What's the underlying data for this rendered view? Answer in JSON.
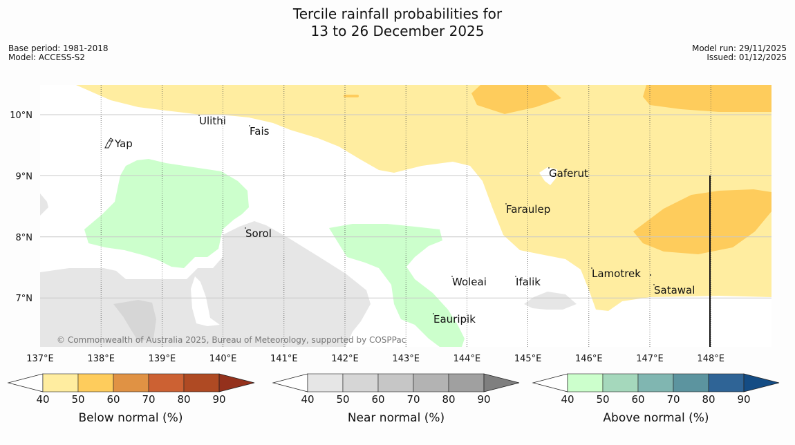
{
  "title_line1": "Tercile rainfall probabilities for",
  "title_line2": "13 to 26 December 2025",
  "meta_left": {
    "base_period": "Base period: 1981-2018",
    "model": "Model: ACCESS-S2"
  },
  "meta_right": {
    "model_run": "Model run: 29/11/2025",
    "issued": "Issued: 01/12/2025"
  },
  "copyright": "© Commonwealth of Australia 2025, Bureau of Meteorology, supported by COSPPac",
  "lon_labels": [
    "137°E",
    "138°E",
    "139°E",
    "140°E",
    "141°E",
    "142°E",
    "143°E",
    "144°E",
    "145°E",
    "146°E",
    "147°E",
    "148°E"
  ],
  "lat_labels": [
    "10°N",
    "9°N",
    "8°N",
    "7°N"
  ],
  "places": [
    {
      "name": "Yap"
    },
    {
      "name": "Ulithi"
    },
    {
      "name": "Fais"
    },
    {
      "name": "Gaferut"
    },
    {
      "name": "Faraulep"
    },
    {
      "name": "Sorol"
    },
    {
      "name": "Lamotrek"
    },
    {
      "name": "Woleai"
    },
    {
      "name": "Ifalik"
    },
    {
      "name": "Satawal"
    },
    {
      "name": "Eauripik"
    }
  ],
  "colorbars": [
    {
      "label": "Below normal (%)",
      "colors": [
        "#ffeda0",
        "#fecc5c",
        "#e09244",
        "#cc6133",
        "#af4a23",
        "#94311c"
      ]
    },
    {
      "label": "Near normal (%)",
      "colors": [
        "#e6e6e6",
        "#d6d6d6",
        "#c6c6c6",
        "#b3b3b3",
        "#a0a0a0",
        "#7f7f7f"
      ]
    },
    {
      "label": "Above normal (%)",
      "colors": [
        "#ccffcc",
        "#a5d8bc",
        "#80b6b1",
        "#5c949f",
        "#2f6496",
        "#144c84"
      ]
    }
  ],
  "colorbar_ticks": [
    "40",
    "50",
    "60",
    "70",
    "80",
    "90"
  ]
}
